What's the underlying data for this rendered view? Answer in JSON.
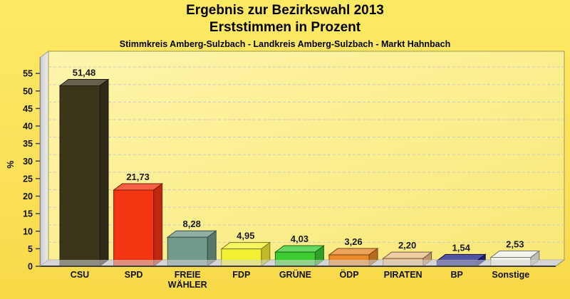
{
  "header": {
    "title_line1": "Ergebnis zur Bezirkswahl 2013",
    "title_line2": "Erststimmen in Prozent",
    "subtitle": "Stimmkreis Amberg-Sulzbach - Landkreis Amberg-Sulzbach - Markt Hahnbach"
  },
  "chart_data": {
    "type": "bar",
    "title": "Ergebnis zur Bezirkswahl 2013 — Erststimmen in Prozent",
    "subtitle": "Stimmkreis Amberg-Sulzbach - Landkreis Amberg-Sulzbach - Markt Hahnbach",
    "categories": [
      "CSU",
      "SPD",
      "FREIE WÄHLER",
      "FDP",
      "GRÜNE",
      "ÖDP",
      "PIRATEN",
      "BP",
      "Sonstige"
    ],
    "values": [
      51.48,
      21.73,
      8.28,
      4.95,
      4.03,
      3.26,
      2.2,
      1.54,
      2.53
    ],
    "value_labels": [
      "51,48",
      "21,73",
      "8,28",
      "4,95",
      "4,03",
      "3,26",
      "2,20",
      "1,54",
      "2,53"
    ],
    "bar_colors": [
      "#3b3519",
      "#f43511",
      "#719a8a",
      "#f3ef33",
      "#3bcc32",
      "#e88a2a",
      "#ecbf89",
      "#24248a",
      "#f2f2e8"
    ],
    "xlabel": "",
    "ylabel": "%",
    "ylim": [
      0,
      59.5
    ],
    "yticks": [
      0,
      5,
      10,
      15,
      20,
      25,
      30,
      35,
      40,
      45,
      50,
      55
    ],
    "grid": "dashed",
    "style": "3d-bar",
    "colors": {
      "page_bg_top": "#fde963",
      "page_bg_bottom": "#f7d947",
      "plot_bg_light": "#fdf5ac",
      "plot_bg_dark": "#f9e876",
      "plot_border": "#9a9a52",
      "gridline": "#cbcbcb",
      "wall_light": "#ededed",
      "wall_dark": "#cccccc",
      "floor": "#d6d6d6",
      "axis": "#3f3f3f",
      "text": "#111111"
    }
  }
}
